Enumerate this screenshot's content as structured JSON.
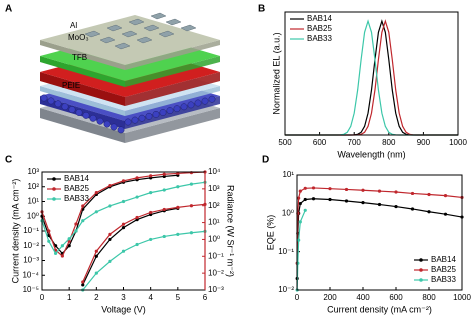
{
  "schematic": {
    "panel_label": "A",
    "labels": [
      "Al",
      "MoO₃",
      "TFB",
      "PEIE"
    ]
  },
  "chart_data": [
    {
      "type": "line",
      "panel_label": "B",
      "xlabel": "Wavelength (nm)",
      "ylabel": "Normalized EL (a.u.)",
      "x": [
        500,
        650,
        660,
        670,
        680,
        690,
        700,
        710,
        720,
        730,
        740,
        750,
        760,
        770,
        780,
        790,
        800,
        810,
        820,
        830,
        840,
        850,
        860,
        870,
        880,
        1000
      ],
      "xlim": [
        500,
        1000
      ],
      "xticks": [
        500,
        600,
        700,
        800,
        900,
        1000
      ],
      "ylim": [
        0,
        1.08
      ],
      "legend": "upper left",
      "markers": false,
      "series": [
        {
          "name": "BAB14",
          "color": "#000000",
          "values": [
            0,
            0,
            0,
            0,
            0,
            0,
            0.001,
            0.006,
            0.024,
            0.076,
            0.192,
            0.395,
            0.662,
            0.902,
            1,
            0.902,
            0.662,
            0.395,
            0.192,
            0.076,
            0.024,
            0.006,
            0.001,
            0,
            0,
            0
          ]
        },
        {
          "name": "BAB25",
          "color": "#c0272d",
          "values": [
            0,
            0,
            0,
            0,
            0,
            0,
            0,
            0.001,
            0.006,
            0.024,
            0.076,
            0.192,
            0.395,
            0.662,
            0.902,
            1,
            0.902,
            0.662,
            0.395,
            0.192,
            0.076,
            0.024,
            0.006,
            0.001,
            0,
            0
          ]
        },
        {
          "name": "BAB33",
          "color": "#3cc7a9",
          "values": [
            0,
            0,
            0.001,
            0.006,
            0.024,
            0.076,
            0.192,
            0.395,
            0.662,
            0.902,
            1,
            0.902,
            0.662,
            0.395,
            0.192,
            0.076,
            0.024,
            0.006,
            0.001,
            0,
            0,
            0,
            0,
            0,
            0,
            0
          ]
        }
      ]
    },
    {
      "type": "line",
      "panel_label": "C",
      "xlabel": "Voltage (V)",
      "ylabel": "Current density (mA cm⁻²)",
      "y2label": "Radiance (W Sr⁻¹ m⁻²)",
      "y2_axis_color": "#c0272d",
      "x": [
        0,
        0.25,
        0.5,
        0.75,
        1,
        1.25,
        1.5,
        2,
        2.5,
        3,
        3.5,
        4,
        4.5,
        5,
        5.5,
        6
      ],
      "xlim": [
        0,
        6
      ],
      "xticks": [
        0,
        1,
        2,
        3,
        4,
        5,
        6
      ],
      "ylog": true,
      "ylim": [
        1e-05,
        1000
      ],
      "yticks": [
        {
          "value": 1e-05,
          "label": "10⁻⁵"
        },
        {
          "value": 0.0001,
          "label": "10⁻⁴"
        },
        {
          "value": 0.001,
          "label": "10⁻³"
        },
        {
          "value": 0.01,
          "label": "10⁻²"
        },
        {
          "value": 0.1,
          "label": "10⁻¹"
        },
        {
          "value": 1,
          "label": "10⁰"
        },
        {
          "value": 10,
          "label": "10¹"
        },
        {
          "value": 100,
          "label": "10²"
        },
        {
          "value": 1000,
          "label": "10³"
        }
      ],
      "y2log": true,
      "y2lim": [
        0.001,
        10000
      ],
      "y2ticks": [
        {
          "value": 0.001,
          "label": "10⁻³"
        },
        {
          "value": 0.01,
          "label": "10⁻²"
        },
        {
          "value": 0.1,
          "label": "10⁻¹"
        },
        {
          "value": 1,
          "label": "10⁰"
        },
        {
          "value": 10,
          "label": "10¹"
        },
        {
          "value": 100,
          "label": "10²"
        },
        {
          "value": 1000,
          "label": "10³"
        },
        {
          "value": 10000,
          "label": "10⁴"
        }
      ],
      "legend": "upper left",
      "markers": true,
      "series": [
        {
          "name": "BAB14",
          "color": "#000000",
          "values": [
            1,
            0.05,
            0.01,
            0.003,
            0.01,
            0.1,
            3,
            30,
            100,
            200,
            300,
            400,
            500,
            600,
            null,
            null
          ]
        },
        {
          "name": "BAB25",
          "color": "#c0272d",
          "values": [
            2,
            0.1,
            0.005,
            0.002,
            0.02,
            0.3,
            5,
            40,
            120,
            250,
            400,
            550,
            700,
            800,
            900,
            1000
          ]
        },
        {
          "name": "BAB33",
          "color": "#3cc7a9",
          "values": [
            0.5,
            0.02,
            0.003,
            0.01,
            0.03,
            0.1,
            0.5,
            2,
            5,
            10,
            20,
            40,
            60,
            100,
            150,
            200
          ]
        },
        {
          "color": "#000000",
          "axis": "y2",
          "values": [
            null,
            null,
            null,
            null,
            null,
            null,
            0.002,
            0.1,
            1,
            5,
            15,
            30,
            50,
            70,
            null,
            null
          ]
        },
        {
          "color": "#c0272d",
          "axis": "y2",
          "values": [
            null,
            null,
            null,
            null,
            null,
            null,
            0.003,
            0.2,
            2,
            8,
            20,
            40,
            60,
            80,
            100,
            120
          ]
        },
        {
          "color": "#3cc7a9",
          "axis": "y2",
          "values": [
            null,
            null,
            null,
            null,
            null,
            null,
            0.001,
            0.01,
            0.05,
            0.2,
            0.5,
            1,
            1.5,
            2,
            2.5,
            3
          ]
        }
      ]
    },
    {
      "type": "line",
      "panel_label": "D",
      "xlabel": "Current density (mA cm⁻²)",
      "ylabel": "EQE (%)",
      "x": [
        1,
        5,
        10,
        20,
        50,
        100,
        200,
        300,
        400,
        500,
        600,
        700,
        800,
        900,
        1000
      ],
      "xlim": [
        0,
        1000
      ],
      "xticks": [
        0,
        200,
        400,
        600,
        800,
        1000
      ],
      "ylog": true,
      "ylim": [
        0.01,
        10
      ],
      "yticks": [
        {
          "value": 0.01,
          "label": "10⁻²"
        },
        {
          "value": 0.1,
          "label": "10⁻¹"
        },
        {
          "value": 1,
          "label": "10⁰"
        },
        {
          "value": 10,
          "label": "10¹"
        }
      ],
      "legend": "lower right",
      "markers": true,
      "series": [
        {
          "name": "BAB14",
          "color": "#000000",
          "values": [
            0.02,
            0.3,
            1,
            1.8,
            2.3,
            2.4,
            2.3,
            2.1,
            1.9,
            1.7,
            1.5,
            1.3,
            1.1,
            0.95,
            0.8
          ]
        },
        {
          "name": "BAB25",
          "color": "#c0272d",
          "values": [
            0.05,
            1,
            2.5,
            3.8,
            4.5,
            4.6,
            4.4,
            4.2,
            4,
            3.8,
            3.6,
            3.3,
            3.1,
            2.9,
            2.6
          ]
        },
        {
          "name": "BAB33",
          "color": "#3cc7a9",
          "values": [
            0.01,
            0.05,
            0.2,
            0.6,
            1.2,
            null,
            null,
            null,
            null,
            null,
            null,
            null,
            null,
            null,
            null
          ]
        }
      ]
    }
  ]
}
